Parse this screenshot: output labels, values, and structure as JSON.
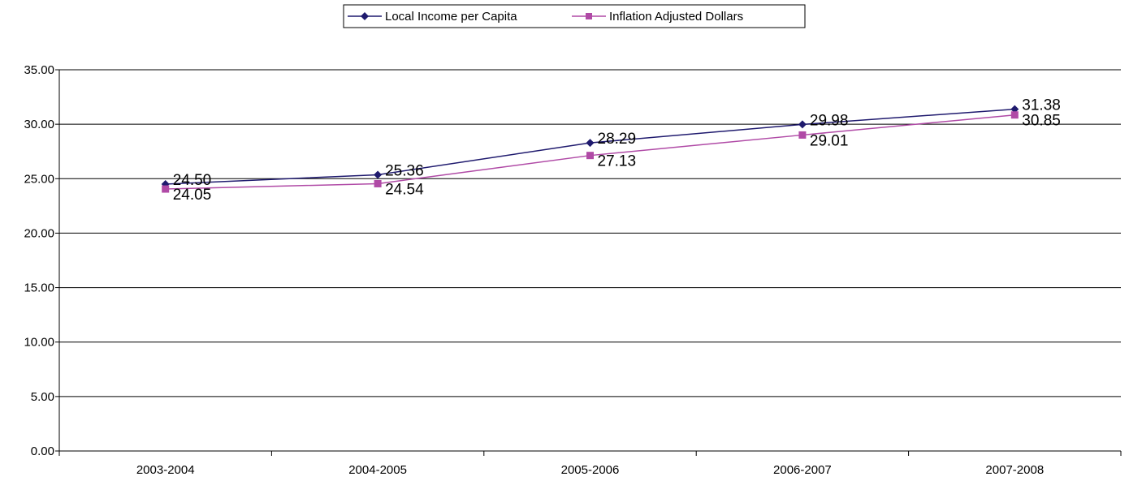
{
  "chart_data": {
    "type": "line",
    "title": "",
    "xlabel": "",
    "ylabel": "",
    "categories": [
      "2003-2004",
      "2004-2005",
      "2005-2006",
      "2006-2007",
      "2007-2008"
    ],
    "ylim": [
      0,
      35
    ],
    "yticks": [
      "0.00",
      "5.00",
      "10.00",
      "15.00",
      "20.00",
      "25.00",
      "30.00",
      "35.00"
    ],
    "grid": true,
    "legend_position": "top",
    "series": [
      {
        "name": "Local Income per Capita",
        "values": [
          24.5,
          25.36,
          28.29,
          29.98,
          31.38
        ],
        "labels": [
          "24.50",
          "25.36",
          "28.29",
          "29.98",
          "31.38"
        ],
        "color": "#1F1A6E",
        "marker": "diamond"
      },
      {
        "name": "Inflation Adjusted Dollars",
        "values": [
          24.05,
          24.54,
          27.13,
          29.01,
          30.85
        ],
        "labels": [
          "24.05",
          "24.54",
          "27.13",
          "29.01",
          "30.85"
        ],
        "color": "#B04AA6",
        "marker": "square"
      }
    ]
  }
}
